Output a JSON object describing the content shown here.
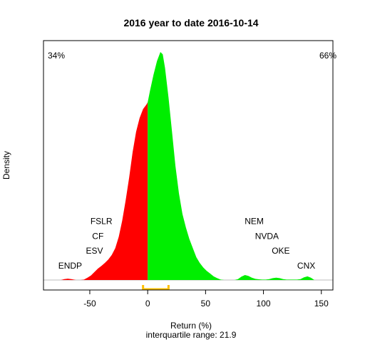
{
  "chart_data": {
    "type": "area",
    "title": "2016  year to date 2016-10-14",
    "xlabel": "Return (%)",
    "ylabel": "Density",
    "subtitle": "interquartile range: 21.9",
    "xlim": [
      -90,
      160
    ],
    "x_ticks": [
      -50,
      0,
      50,
      100,
      150
    ],
    "neg_pct_label": "34%",
    "pos_pct_label": "66%",
    "colors": {
      "negative": "#ff0000",
      "positive": "#00ee00",
      "iqr": "#ffc000",
      "pct_neg": "#ff0000",
      "pct_pos": "#00aa00"
    },
    "iqr": [
      -4,
      18
    ],
    "density": {
      "x": [
        -75,
        -72,
        -69,
        -66,
        -62,
        -58,
        -55,
        -52,
        -49,
        -46,
        -43,
        -40,
        -37,
        -34,
        -31,
        -28,
        -25,
        -22,
        -19,
        -16,
        -13,
        -10,
        -7,
        -4,
        -1,
        0,
        2,
        5,
        8,
        11,
        13,
        15,
        18,
        21,
        24,
        27,
        30,
        33,
        36,
        39,
        42,
        45,
        48,
        51,
        54,
        57,
        60,
        63,
        66,
        69,
        72,
        75,
        78,
        81,
        84,
        87,
        90,
        93,
        96,
        99,
        102,
        105,
        108,
        111,
        114,
        117,
        120,
        123,
        126,
        129,
        132,
        135,
        138,
        141,
        144
      ],
      "y": [
        0.0,
        0.004,
        0.006,
        0.004,
        0.0,
        0.0,
        0.002,
        0.01,
        0.02,
        0.035,
        0.05,
        0.062,
        0.075,
        0.09,
        0.11,
        0.14,
        0.19,
        0.26,
        0.35,
        0.45,
        0.56,
        0.65,
        0.71,
        0.75,
        0.77,
        0.78,
        0.83,
        0.9,
        0.96,
        1.0,
        0.99,
        0.93,
        0.8,
        0.65,
        0.5,
        0.38,
        0.29,
        0.23,
        0.18,
        0.14,
        0.1,
        0.075,
        0.055,
        0.04,
        0.028,
        0.016,
        0.008,
        0.002,
        0.0,
        0.0,
        0.0,
        0.0,
        0.004,
        0.015,
        0.022,
        0.018,
        0.01,
        0.005,
        0.003,
        0.002,
        0.002,
        0.004,
        0.008,
        0.01,
        0.008,
        0.004,
        0.002,
        0.002,
        0.002,
        0.002,
        0.004,
        0.012,
        0.016,
        0.01,
        0.0
      ]
    },
    "stock_labels": [
      {
        "text": "ENDP",
        "x": -67,
        "y": 0.05
      },
      {
        "text": "ESV",
        "x": -46,
        "y": 0.115
      },
      {
        "text": "CF",
        "x": -43,
        "y": 0.18
      },
      {
        "text": "FSLR",
        "x": -40,
        "y": 0.245
      },
      {
        "text": "NEM",
        "x": 92,
        "y": 0.245
      },
      {
        "text": "NVDA",
        "x": 103,
        "y": 0.18
      },
      {
        "text": "OKE",
        "x": 115,
        "y": 0.115
      },
      {
        "text": "CNX",
        "x": 137,
        "y": 0.05
      }
    ]
  }
}
